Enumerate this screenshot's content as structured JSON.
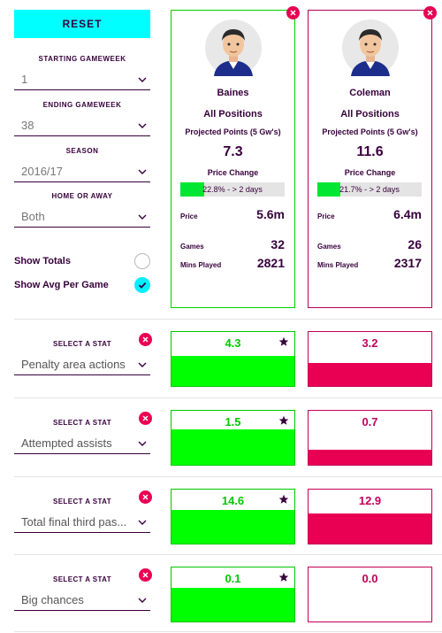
{
  "filters": {
    "reset_label": "RESET",
    "starting_gameweek": {
      "label": "STARTING GAMEWEEK",
      "value": "1"
    },
    "ending_gameweek": {
      "label": "ENDING GAMEWEEK",
      "value": "38"
    },
    "season": {
      "label": "SEASON",
      "value": "2016/17"
    },
    "home_or_away": {
      "label": "HOME OR AWAY",
      "value": "Both"
    },
    "show_totals": {
      "label": "Show Totals",
      "checked": false
    },
    "show_avg": {
      "label": "Show Avg Per Game",
      "checked": true
    }
  },
  "players": [
    {
      "name": "Baines",
      "positions": "All Positions",
      "projected_label": "Projected Points (5 Gw's)",
      "projected_value": "7.3",
      "price_change_label": "Price Change",
      "price_change_text": "22.8% - > 2 days",
      "price_change_pct": 22.8,
      "price_label": "Price",
      "price_value": "5.6m",
      "games_label": "Games",
      "games_value": "32",
      "mins_label": "Mins Played",
      "mins_value": "2821",
      "accent": "#00d200"
    },
    {
      "name": "Coleman",
      "positions": "All Positions",
      "projected_label": "Projected Points (5 Gw's)",
      "projected_value": "11.6",
      "price_change_label": "Price Change",
      "price_change_text": "21.7% - > 2 days",
      "price_change_pct": 21.7,
      "price_label": "Price",
      "price_value": "6.4m",
      "games_label": "Games",
      "games_value": "26",
      "mins_label": "Mins Played",
      "mins_value": "2317",
      "accent": "#b5005a"
    }
  ],
  "stats": [
    {
      "label": "SELECT A STAT",
      "value": "Penalty area actions",
      "left": "4.3",
      "right": "3.2",
      "left_fill": 0.55,
      "right_fill": 0.42,
      "left_starred": true
    },
    {
      "label": "SELECT A STAT",
      "value": "Attempted assists",
      "left": "1.5",
      "right": "0.7",
      "left_fill": 0.66,
      "right_fill": 0.28,
      "left_starred": true
    },
    {
      "label": "SELECT A STAT",
      "value": "Total final third pas...",
      "left": "14.6",
      "right": "12.9",
      "left_fill": 0.62,
      "right_fill": 0.56,
      "left_starred": true
    },
    {
      "label": "SELECT A STAT",
      "value": "Big chances",
      "left": "0.1",
      "right": "0.0",
      "left_fill": 0.62,
      "right_fill": 0.0,
      "left_starred": true
    }
  ],
  "colors": {
    "brand": "#37003c",
    "accent_cyan": "#00ffff",
    "green": "#00ff00",
    "pink": "#e90052"
  }
}
